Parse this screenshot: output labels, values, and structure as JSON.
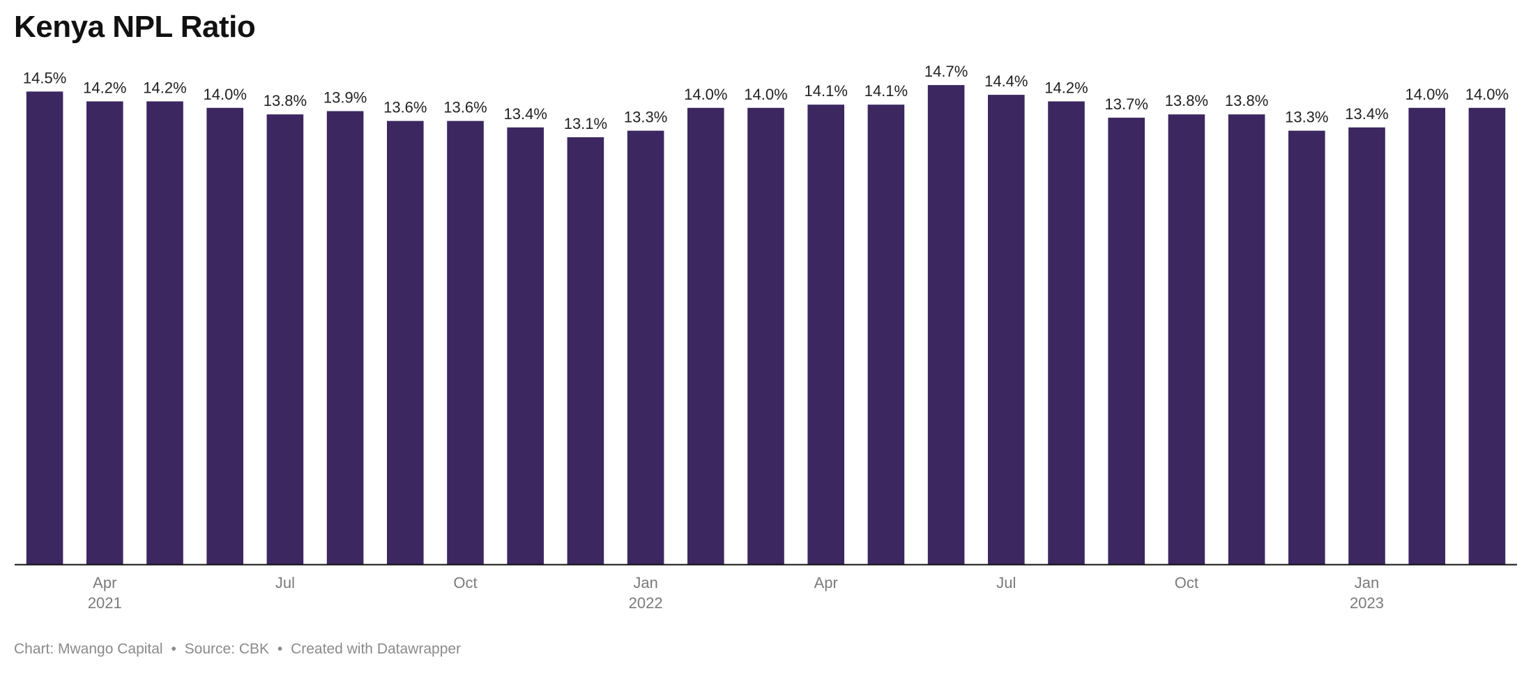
{
  "title": "Kenya NPL Ratio",
  "footer": {
    "credit": "Chart: Mwango Capital",
    "separator": "•",
    "source": "Source: CBK",
    "created": "Created with Datawrapper"
  },
  "colors": {
    "bar": "#3c2761",
    "axis": "#111111",
    "label": "#222222",
    "tick": "#7a7a7a"
  },
  "chart_data": {
    "type": "bar",
    "title": "Kenya NPL Ratio",
    "xlabel": "",
    "ylabel": "",
    "ylim": [
      0,
      15.3
    ],
    "grid": false,
    "value_suffix": "%",
    "categories": [
      "2021-03",
      "2021-04",
      "2021-05",
      "2021-06",
      "2021-07",
      "2021-08",
      "2021-09",
      "2021-10",
      "2021-11",
      "2021-12",
      "2022-01",
      "2022-02",
      "2022-03",
      "2022-04",
      "2022-05",
      "2022-06",
      "2022-07",
      "2022-08",
      "2022-09",
      "2022-10",
      "2022-11",
      "2022-12",
      "2023-01",
      "2023-02",
      "2023-03"
    ],
    "values": [
      14.5,
      14.2,
      14.2,
      14.0,
      13.8,
      13.9,
      13.6,
      13.6,
      13.4,
      13.1,
      13.3,
      14.0,
      14.0,
      14.1,
      14.1,
      14.7,
      14.4,
      14.2,
      13.7,
      13.8,
      13.8,
      13.3,
      13.4,
      14.0,
      14.0
    ],
    "labels": [
      "14.5%",
      "14.2%",
      "14.2%",
      "14.0%",
      "13.8%",
      "13.9%",
      "13.6%",
      "13.6%",
      "13.4%",
      "13.1%",
      "13.3%",
      "14.0%",
      "14.0%",
      "14.1%",
      "14.1%",
      "14.7%",
      "14.4%",
      "14.2%",
      "13.7%",
      "13.8%",
      "13.8%",
      "13.3%",
      "13.4%",
      "14.0%",
      "14.0%"
    ],
    "x_ticks": [
      {
        "index": 1,
        "label": "Apr",
        "year": "2021"
      },
      {
        "index": 4,
        "label": "Jul",
        "year": ""
      },
      {
        "index": 7,
        "label": "Oct",
        "year": ""
      },
      {
        "index": 10,
        "label": "Jan",
        "year": "2022"
      },
      {
        "index": 13,
        "label": "Apr",
        "year": ""
      },
      {
        "index": 16,
        "label": "Jul",
        "year": ""
      },
      {
        "index": 19,
        "label": "Oct",
        "year": ""
      },
      {
        "index": 22,
        "label": "Jan",
        "year": "2023"
      }
    ]
  }
}
